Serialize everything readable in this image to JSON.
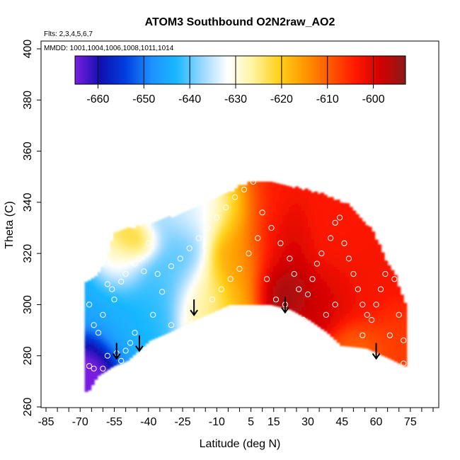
{
  "chart_data": {
    "type": "heatmap",
    "title": "ATOM3 Southbound O2N2raw_AO2",
    "subtitle_lines": [
      "Flts: 2,3,4,5,6,7",
      "MMDD: 1001,1004,1006,1008,1011,1014"
    ],
    "xlabel": "Latitude (deg N)",
    "ylabel": "Theta (C)",
    "xlim": [
      -85,
      85
    ],
    "ylim": [
      260,
      400
    ],
    "x_ticks": [
      -85,
      -70,
      -55,
      -40,
      -25,
      -10,
      5,
      15,
      30,
      45,
      60,
      75
    ],
    "x_minor_step": 5,
    "y_ticks": [
      260,
      280,
      300,
      320,
      340,
      360,
      380,
      400
    ],
    "colorbar": {
      "range": [
        -665,
        -593
      ],
      "ticks": [
        -660,
        -650,
        -640,
        -630,
        -620,
        -610,
        -600
      ],
      "colors": [
        "#7a1fe0",
        "#1010b0",
        "#0040e0",
        "#1e90ff",
        "#19b8ff",
        "#9ad8ff",
        "#ffffff",
        "#fff3a0",
        "#ffd21a",
        "#ff9a00",
        "#ff5a00",
        "#ff1a00",
        "#d40000",
        "#8b1a1a"
      ]
    },
    "tropopause_lower_boundary": [
      {
        "lat": -67,
        "theta": 266
      },
      {
        "lat": -63,
        "theta": 272
      },
      {
        "lat": -56,
        "theta": 276
      },
      {
        "lat": -50,
        "theta": 278
      },
      {
        "lat": -45,
        "theta": 282
      },
      {
        "lat": -40,
        "theta": 286
      },
      {
        "lat": -32,
        "theta": 289
      },
      {
        "lat": -25,
        "theta": 292
      },
      {
        "lat": -15,
        "theta": 296
      },
      {
        "lat": -5,
        "theta": 300
      },
      {
        "lat": 5,
        "theta": 300
      },
      {
        "lat": 13,
        "theta": 300
      },
      {
        "lat": 22,
        "theta": 298
      },
      {
        "lat": 30,
        "theta": 294
      },
      {
        "lat": 38,
        "theta": 289
      },
      {
        "lat": 44,
        "theta": 284
      },
      {
        "lat": 55,
        "theta": 283
      },
      {
        "lat": 65,
        "theta": 279
      },
      {
        "lat": 72,
        "theta": 276
      }
    ],
    "arrows": [
      {
        "lat": -54,
        "theta": 285
      },
      {
        "lat": -44,
        "theta": 288
      },
      {
        "lat": -20,
        "theta": 302
      },
      {
        "lat": 20,
        "theta": 303
      },
      {
        "lat": 60,
        "theta": 285
      }
    ],
    "observation_points": [
      {
        "lat": -66,
        "theta": 276
      },
      {
        "lat": -64,
        "theta": 275
      },
      {
        "lat": -60,
        "theta": 275
      },
      {
        "lat": -58,
        "theta": 280
      },
      {
        "lat": -54,
        "theta": 281
      },
      {
        "lat": -50,
        "theta": 282
      },
      {
        "lat": -52,
        "theta": 278
      },
      {
        "lat": -48,
        "theta": 285
      },
      {
        "lat": -46,
        "theta": 289
      },
      {
        "lat": -38,
        "theta": 296
      },
      {
        "lat": -30,
        "theta": 292
      },
      {
        "lat": -22,
        "theta": 294
      },
      {
        "lat": -62,
        "theta": 289
      },
      {
        "lat": -64,
        "theta": 292
      },
      {
        "lat": -66,
        "theta": 300
      },
      {
        "lat": -60,
        "theta": 296
      },
      {
        "lat": -58,
        "theta": 308
      },
      {
        "lat": -56,
        "theta": 306
      },
      {
        "lat": -55,
        "theta": 302
      },
      {
        "lat": -52,
        "theta": 309
      },
      {
        "lat": -50,
        "theta": 312
      },
      {
        "lat": -46,
        "theta": 316
      },
      {
        "lat": -44,
        "theta": 318
      },
      {
        "lat": -42,
        "theta": 313
      },
      {
        "lat": -40,
        "theta": 324
      },
      {
        "lat": -36,
        "theta": 312
      },
      {
        "lat": -34,
        "theta": 305
      },
      {
        "lat": -30,
        "theta": 315
      },
      {
        "lat": -26,
        "theta": 318
      },
      {
        "lat": -22,
        "theta": 322
      },
      {
        "lat": -18,
        "theta": 326
      },
      {
        "lat": -14,
        "theta": 330
      },
      {
        "lat": -10,
        "theta": 334
      },
      {
        "lat": -6,
        "theta": 338
      },
      {
        "lat": -2,
        "theta": 342
      },
      {
        "lat": 2,
        "theta": 345
      },
      {
        "lat": 6,
        "theta": 348
      },
      {
        "lat": 10,
        "theta": 336
      },
      {
        "lat": 14,
        "theta": 330
      },
      {
        "lat": 18,
        "theta": 324
      },
      {
        "lat": 22,
        "theta": 318
      },
      {
        "lat": 24,
        "theta": 312
      },
      {
        "lat": 26,
        "theta": 306
      },
      {
        "lat": 30,
        "theta": 304
      },
      {
        "lat": 32,
        "theta": 310
      },
      {
        "lat": 34,
        "theta": 316
      },
      {
        "lat": 36,
        "theta": 320
      },
      {
        "lat": 40,
        "theta": 326
      },
      {
        "lat": 42,
        "theta": 332
      },
      {
        "lat": 44,
        "theta": 334
      },
      {
        "lat": 46,
        "theta": 324
      },
      {
        "lat": 48,
        "theta": 318
      },
      {
        "lat": 50,
        "theta": 312
      },
      {
        "lat": 52,
        "theta": 306
      },
      {
        "lat": 54,
        "theta": 300
      },
      {
        "lat": 56,
        "theta": 296
      },
      {
        "lat": 58,
        "theta": 294
      },
      {
        "lat": 60,
        "theta": 300
      },
      {
        "lat": 62,
        "theta": 306
      },
      {
        "lat": 64,
        "theta": 312
      },
      {
        "lat": 66,
        "theta": 318
      },
      {
        "lat": 68,
        "theta": 310
      },
      {
        "lat": 70,
        "theta": 296
      },
      {
        "lat": 72,
        "theta": 286
      },
      {
        "lat": 72,
        "theta": 277
      },
      {
        "lat": 8,
        "theta": 326
      },
      {
        "lat": 4,
        "theta": 320
      },
      {
        "lat": 0,
        "theta": 314
      },
      {
        "lat": -4,
        "theta": 310
      },
      {
        "lat": -8,
        "theta": 306
      },
      {
        "lat": -12,
        "theta": 302
      },
      {
        "lat": 12,
        "theta": 310
      },
      {
        "lat": 16,
        "theta": 302
      },
      {
        "lat": 20,
        "theta": 300
      },
      {
        "lat": 28,
        "theta": 294
      },
      {
        "lat": 38,
        "theta": 296
      },
      {
        "lat": 42,
        "theta": 300
      },
      {
        "lat": 54,
        "theta": 288
      },
      {
        "lat": 66,
        "theta": 288
      }
    ]
  }
}
